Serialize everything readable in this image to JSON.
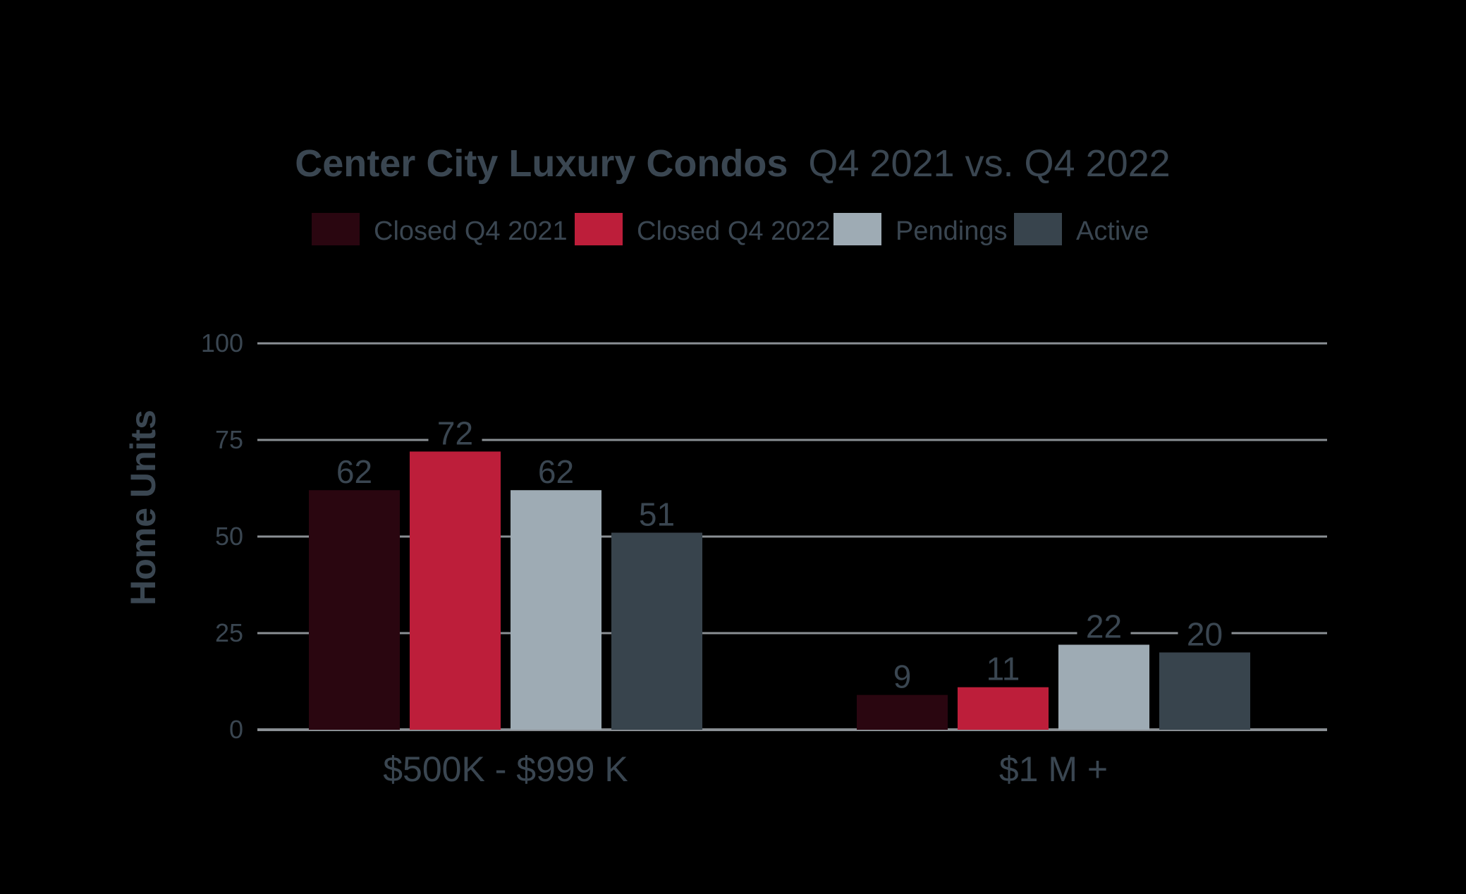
{
  "chart_data": {
    "type": "bar",
    "title_bold": "Center City Luxury Condos",
    "title_regular": "Q4 2021 vs. Q4 2022",
    "ylabel": "Home Units",
    "xlabel": "",
    "ylim": [
      0,
      100
    ],
    "yticks": [
      0,
      25,
      50,
      75,
      100
    ],
    "grid": true,
    "legend_position": "top-center",
    "categories": [
      "$500K - $999 K",
      "$1 M +"
    ],
    "series": [
      {
        "name": "Closed Q4 2021",
        "color": "#2a0610",
        "values": [
          62,
          9
        ]
      },
      {
        "name": "Closed Q4 2022",
        "color": "#bd1e3a",
        "values": [
          72,
          11
        ]
      },
      {
        "name": "Pendings",
        "color": "#9eabb4",
        "values": [
          62,
          22
        ]
      },
      {
        "name": "Active",
        "color": "#38444d",
        "values": [
          51,
          20
        ]
      }
    ]
  },
  "colors": {
    "background": "#000000",
    "text": "#3a4651",
    "grid": "#8a8f94"
  }
}
